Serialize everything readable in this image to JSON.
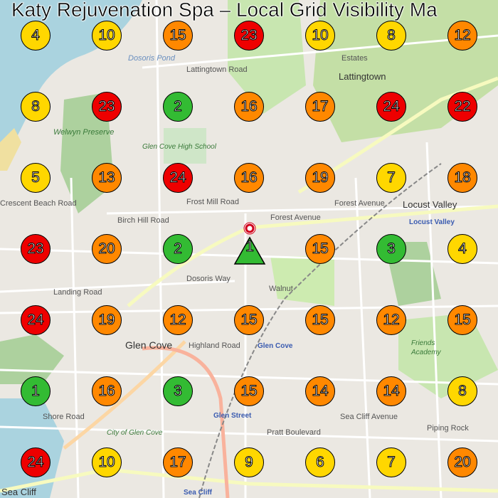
{
  "title": "Katy Rejuvenation Spa – Local Grid Visibility Ma",
  "colors": {
    "green": "#33bb33",
    "yellow": "#ffd700",
    "orange": "#ff8800",
    "red": "#ee0000",
    "water": "#aad3df",
    "park": "#c8e6b0"
  },
  "rank_color_rule": "1-3 green, 4-10 yellow, 11-20 orange, 21+ red",
  "center": {
    "rank": 1,
    "icon": "business-location-pin-icon"
  },
  "grid": [
    [
      4,
      10,
      15,
      23,
      10,
      8,
      12
    ],
    [
      8,
      23,
      2,
      16,
      17,
      24,
      22
    ],
    [
      5,
      13,
      24,
      16,
      19,
      7,
      18
    ],
    [
      23,
      20,
      2,
      null,
      15,
      3,
      4
    ],
    [
      24,
      19,
      12,
      15,
      15,
      12,
      15
    ],
    [
      1,
      16,
      3,
      15,
      14,
      14,
      8
    ],
    [
      24,
      10,
      17,
      9,
      6,
      7,
      20
    ]
  ],
  "map_labels": {
    "dosoris_pond": "Dosoris Pond",
    "estates": "Estates",
    "lattingtown_road": "Lattingtown Road",
    "lattingtown": "Lattingtown",
    "welwyn": "Welwyn Preserve",
    "high_school": "Glen Cove High School",
    "locust_valley": "Locust Valley",
    "locust_valley_station": "Locust Valley",
    "forest_avenue": "Forest Avenue",
    "forest_avenue2": "Forest Avenue",
    "dosoris_way": "Dosoris Way",
    "landing_road": "Landing Road",
    "highland_road": "Highland Road",
    "glen_cove": "Glen Cove",
    "glen_cove_station": "Glen Cove",
    "friends_academy": "Friends Academy",
    "glen_street": "Glen Street",
    "sea_cliff": "Sea Cliff",
    "sea_cliff_station": "Sea Cliff",
    "city_of_glen_cove": "City of Glen Cove",
    "shore_road": "Shore Road",
    "pratt": "Pratt Boulevard",
    "crescent_beach": "Crescent Beach Road",
    "birch_hill": "Birch Hill Road",
    "piping_rock": "Piping Rock",
    "sea_cliff_avenue": "Sea Cliff Avenue",
    "walnut": "Walnut",
    "frost_mill": "Frost Mill Road"
  }
}
